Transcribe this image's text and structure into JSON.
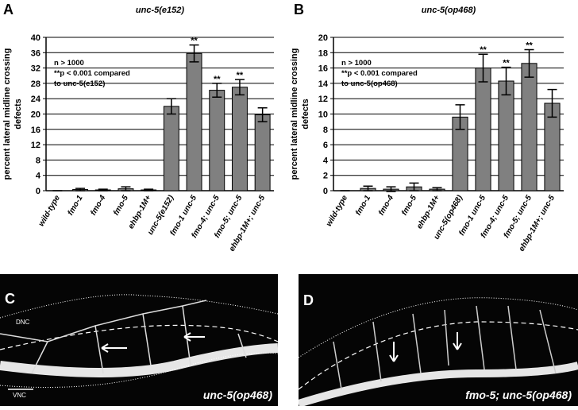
{
  "chart_data": [
    {
      "type": "bar",
      "panel_label": "A",
      "title": "unc-5(e152)",
      "ylabel": [
        "percent lateral midline crossing",
        "defects"
      ],
      "categories": [
        "wild-type",
        "fmo-1",
        "fmo-4",
        "fmo-5",
        "ehbp-1M+",
        "unc-5(e152)",
        "fmo-1 unc-5",
        "fmo-4; unc-5",
        "fmo-5; unc-5",
        "ehbp-1M+; unc-5"
      ],
      "values": [
        0,
        0.3,
        0.2,
        0.5,
        0.2,
        22,
        35.8,
        26.2,
        27,
        19.8
      ],
      "errors": [
        0,
        0.3,
        0.2,
        0.5,
        0.2,
        2,
        2.2,
        1.8,
        2,
        1.8
      ],
      "significance": [
        null,
        null,
        null,
        null,
        null,
        null,
        "**",
        "**",
        "**",
        null
      ],
      "note": [
        "n > 1000",
        "**p < 0.001 compared",
        "to unc-5(e152)"
      ],
      "color": "#808080",
      "ylim": [
        0,
        40
      ],
      "yticks": [
        0,
        4,
        8,
        12,
        16,
        20,
        24,
        28,
        32,
        36,
        40
      ],
      "grid": true
    },
    {
      "type": "bar",
      "panel_label": "B",
      "title": "unc-5(op468)",
      "ylabel": [
        "percent lateral midline crossing",
        "defects"
      ],
      "categories": [
        "wild-type",
        "fmo-1",
        "fmo-4",
        "fmo-5",
        "ehbp-1M+",
        "unc-5(op468)",
        "fmo-1 unc-5",
        "fmo-4; unc-5",
        "fmo-5; unc-5",
        "ehbp-1M+; unc-5"
      ],
      "values": [
        0,
        0.3,
        0.2,
        0.5,
        0.2,
        9.6,
        16,
        14.3,
        16.6,
        11.4
      ],
      "errors": [
        0,
        0.3,
        0.3,
        0.5,
        0.2,
        1.6,
        1.8,
        1.8,
        1.8,
        1.8
      ],
      "significance": [
        null,
        null,
        null,
        null,
        null,
        null,
        "**",
        "**",
        "**",
        null
      ],
      "note": [
        "n > 1000",
        "**p < 0.001 compared",
        "to unc-5(op468)"
      ],
      "color": "#808080",
      "ylim": [
        0,
        20
      ],
      "yticks": [
        0,
        2,
        4,
        6,
        8,
        10,
        12,
        14,
        16,
        18,
        20
      ],
      "grid": true
    }
  ],
  "images": [
    {
      "panel_label": "C",
      "caption": "unc-5(op468)",
      "labels": [
        "DNC",
        "VNC"
      ]
    },
    {
      "panel_label": "D",
      "caption": "fmo-5; unc-5(op468)"
    }
  ]
}
